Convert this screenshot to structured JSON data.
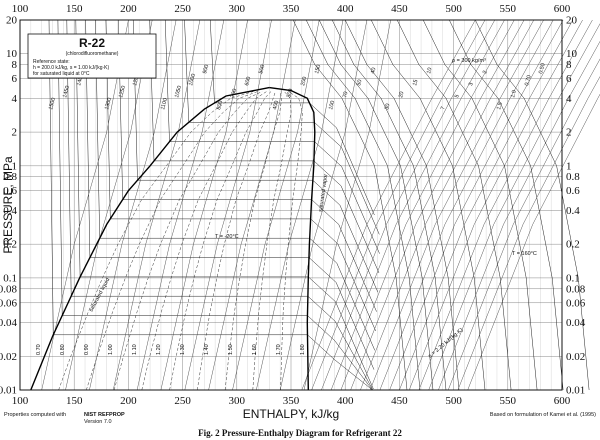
{
  "chart_data": {
    "type": "line",
    "title": "",
    "xlabel": "ENTHALPY, kJ/kg",
    "ylabel": "PRESSURE, MPa",
    "xlim": [
      100,
      600
    ],
    "ylim": [
      0.01,
      20
    ],
    "y_scale": "log",
    "x_ticks": [
      100,
      150,
      200,
      250,
      300,
      350,
      400,
      450,
      500,
      550,
      600
    ],
    "y_ticks": [
      {
        "v": 0.01,
        "label": "0.01"
      },
      {
        "v": 0.02,
        "label": "0.02"
      },
      {
        "v": 0.04,
        "label": "0.04"
      },
      {
        "v": 0.06,
        "label": "0.06"
      },
      {
        "v": 0.08,
        "label": "0.08"
      },
      {
        "v": 0.1,
        "label": "0.1"
      },
      {
        "v": 0.2,
        "label": "0.2"
      },
      {
        "v": 0.4,
        "label": "0.4"
      },
      {
        "v": 0.6,
        "label": "0.6"
      },
      {
        "v": 0.8,
        "label": "0.8"
      },
      {
        "v": 1,
        "label": "1"
      },
      {
        "v": 2,
        "label": "2"
      },
      {
        "v": 4,
        "label": "4"
      },
      {
        "v": 6,
        "label": "6"
      },
      {
        "v": 8,
        "label": "8"
      },
      {
        "v": 10,
        "label": "10"
      },
      {
        "v": 20,
        "label": "20"
      }
    ],
    "saturation_dome": {
      "liquid": [
        [
          110,
          0.01
        ],
        [
          130,
          0.03
        ],
        [
          155,
          0.1
        ],
        [
          180,
          0.3
        ],
        [
          200,
          0.6
        ],
        [
          220,
          1.0
        ],
        [
          245,
          2.0
        ],
        [
          270,
          3.2
        ],
        [
          290,
          4.2
        ],
        [
          330,
          4.99
        ]
      ],
      "vapor": [
        [
          330,
          4.99
        ],
        [
          350,
          4.7
        ],
        [
          365,
          4.0
        ],
        [
          371,
          3.0
        ],
        [
          372,
          2.0
        ],
        [
          371,
          1.0
        ],
        [
          369,
          0.5
        ],
        [
          367,
          0.2
        ],
        [
          366,
          0.1
        ],
        [
          365,
          0.04
        ],
        [
          366,
          0.01
        ]
      ]
    },
    "isotherms_C": [
      -70,
      -60,
      -50,
      -40,
      -30,
      -20,
      -10,
      0,
      10,
      20,
      30,
      40,
      50,
      60,
      70,
      80,
      90,
      100,
      120,
      140,
      160,
      180,
      200
    ],
    "quality_lines": [
      0.1,
      0.2,
      0.3,
      0.4,
      0.5,
      0.6,
      0.7,
      0.8,
      0.9
    ],
    "isotherm_labels": [
      "T = -20°C",
      "T = 160°C"
    ],
    "density_label": "ρ = 300 kg/m³",
    "entropy_label": "s = 2.20 kJ/(kg·K)",
    "liquid_entropy_labels": [
      "0.70",
      "0.80",
      "0.90",
      "1.00",
      "1.10",
      "1.20",
      "1.30",
      "1.40",
      "1.50",
      "1.60",
      "1.70",
      "1.80"
    ],
    "density_labels": [
      "1500",
      "1450",
      "1400",
      "1350",
      "1300",
      "1250",
      "1200",
      "1150",
      "1100",
      "1050",
      "1000",
      "900",
      "800",
      "700",
      "600",
      "500",
      "400",
      "300",
      "200",
      "150",
      "100",
      "70",
      "50",
      "40",
      "30",
      "20",
      "15",
      "10",
      "7",
      "5",
      "3",
      "2",
      "1.5",
      "1.0",
      "0.70",
      "0.50"
    ],
    "saturation_labels": [
      "saturated liquid",
      "saturated vapor"
    ]
  },
  "legend_box": {
    "title": "R-22",
    "subtitle": "(chlorodifluoromethane)",
    "ref_line1": "Reference state:",
    "ref_line2": "h = 200.0 kJ/kg,  s = 1.00 kJ/(kg·K)",
    "ref_line3": "for saturated liquid at 0°C"
  },
  "footer": {
    "left_prefix": "Properties computed with",
    "left_bold": "NIST REFPROP",
    "left_version": "Version 7.0",
    "right": "Based on formulation of Kamei et al. (1995)",
    "caption": "Fig. 2    Pressure-Enthalpy Diagram for Refrigerant 22"
  }
}
